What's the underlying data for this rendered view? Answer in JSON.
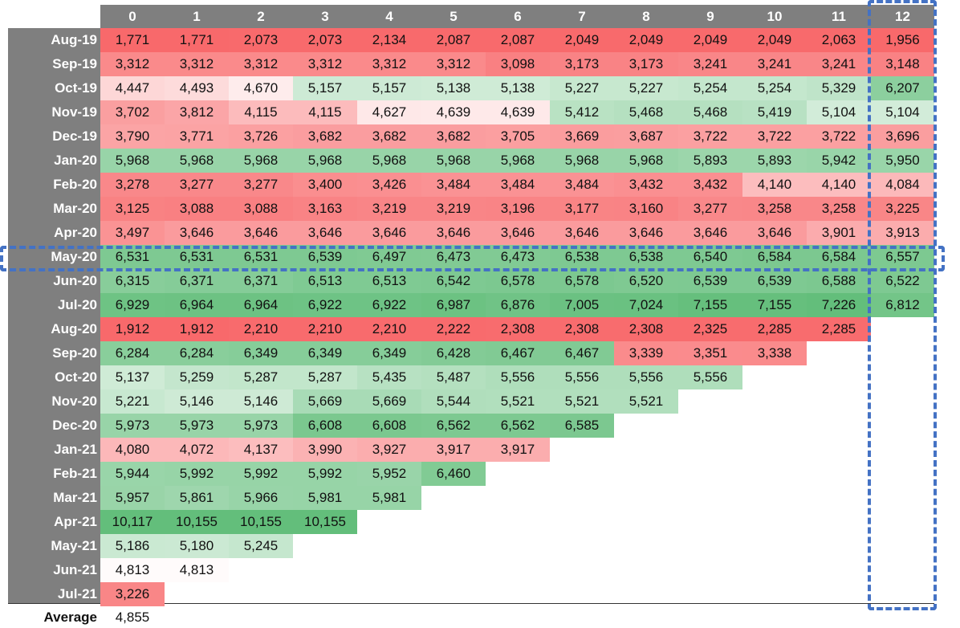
{
  "chart_data": {
    "type": "heatmap",
    "columns": [
      "0",
      "1",
      "2",
      "3",
      "4",
      "5",
      "6",
      "7",
      "8",
      "9",
      "10",
      "11",
      "12"
    ],
    "rows": [
      {
        "label": "Aug-19",
        "values": [
          1771,
          1771,
          2073,
          2073,
          2134,
          2087,
          2087,
          2049,
          2049,
          2049,
          2049,
          2063,
          1956
        ]
      },
      {
        "label": "Sep-19",
        "values": [
          3312,
          3312,
          3312,
          3312,
          3312,
          3312,
          3098,
          3173,
          3173,
          3241,
          3241,
          3241,
          3148
        ]
      },
      {
        "label": "Oct-19",
        "values": [
          4447,
          4493,
          4670,
          5157,
          5157,
          5138,
          5138,
          5227,
          5227,
          5254,
          5254,
          5329,
          6207
        ]
      },
      {
        "label": "Nov-19",
        "values": [
          3702,
          3812,
          4115,
          4115,
          4627,
          4639,
          4639,
          5412,
          5468,
          5468,
          5419,
          5104,
          5104
        ]
      },
      {
        "label": "Dec-19",
        "values": [
          3790,
          3771,
          3726,
          3682,
          3682,
          3682,
          3705,
          3669,
          3687,
          3722,
          3722,
          3722,
          3696
        ]
      },
      {
        "label": "Jan-20",
        "values": [
          5968,
          5968,
          5968,
          5968,
          5968,
          5968,
          5968,
          5968,
          5968,
          5893,
          5893,
          5942,
          5950
        ]
      },
      {
        "label": "Feb-20",
        "values": [
          3278,
          3277,
          3277,
          3400,
          3426,
          3484,
          3484,
          3484,
          3432,
          3432,
          4140,
          4140,
          4084
        ]
      },
      {
        "label": "Mar-20",
        "values": [
          3125,
          3088,
          3088,
          3163,
          3219,
          3219,
          3196,
          3177,
          3160,
          3277,
          3258,
          3258,
          3225
        ]
      },
      {
        "label": "Apr-20",
        "values": [
          3497,
          3646,
          3646,
          3646,
          3646,
          3646,
          3646,
          3646,
          3646,
          3646,
          3646,
          3901,
          3913
        ]
      },
      {
        "label": "May-20",
        "values": [
          6531,
          6531,
          6531,
          6539,
          6497,
          6473,
          6473,
          6538,
          6538,
          6540,
          6584,
          6584,
          6557
        ]
      },
      {
        "label": "Jun-20",
        "values": [
          6315,
          6371,
          6371,
          6513,
          6513,
          6542,
          6578,
          6578,
          6520,
          6539,
          6539,
          6588,
          6522
        ]
      },
      {
        "label": "Jul-20",
        "values": [
          6929,
          6964,
          6964,
          6922,
          6922,
          6987,
          6876,
          7005,
          7024,
          7155,
          7155,
          7226,
          6812
        ]
      },
      {
        "label": "Aug-20",
        "values": [
          1912,
          1912,
          2210,
          2210,
          2210,
          2222,
          2308,
          2308,
          2308,
          2325,
          2285,
          2285
        ]
      },
      {
        "label": "Sep-20",
        "values": [
          6284,
          6284,
          6349,
          6349,
          6349,
          6428,
          6467,
          6467,
          3339,
          3351,
          3338
        ]
      },
      {
        "label": "Oct-20",
        "values": [
          5137,
          5259,
          5287,
          5287,
          5435,
          5487,
          5556,
          5556,
          5556,
          5556
        ]
      },
      {
        "label": "Nov-20",
        "values": [
          5221,
          5146,
          5146,
          5669,
          5669,
          5544,
          5521,
          5521,
          5521
        ]
      },
      {
        "label": "Dec-20",
        "values": [
          5973,
          5973,
          5973,
          6608,
          6608,
          6562,
          6562,
          6585
        ]
      },
      {
        "label": "Jan-21",
        "values": [
          4080,
          4072,
          4137,
          3990,
          3927,
          3917,
          3917
        ]
      },
      {
        "label": "Feb-21",
        "values": [
          5944,
          5992,
          5992,
          5992,
          5952,
          6460
        ]
      },
      {
        "label": "Mar-21",
        "values": [
          5957,
          5861,
          5966,
          5981,
          5981
        ]
      },
      {
        "label": "Apr-21",
        "values": [
          10117,
          10155,
          10155,
          10155
        ]
      },
      {
        "label": "May-21",
        "values": [
          5186,
          5180,
          5245
        ]
      },
      {
        "label": "Jun-21",
        "values": [
          4813,
          4813
        ]
      },
      {
        "label": "Jul-21",
        "values": [
          3226
        ]
      }
    ],
    "summary": {
      "label": "Average",
      "value": "4,855"
    },
    "highlighted_row": "May-20",
    "highlighted_column": "12",
    "color_scale": {
      "low": "#f8696b",
      "mid": "#ffffff",
      "high": "#63be7b",
      "mid_value": 4855
    },
    "header_color": "#7f7f7f",
    "highlight_color": "#4472c4",
    "number_format": "thousands-comma"
  }
}
